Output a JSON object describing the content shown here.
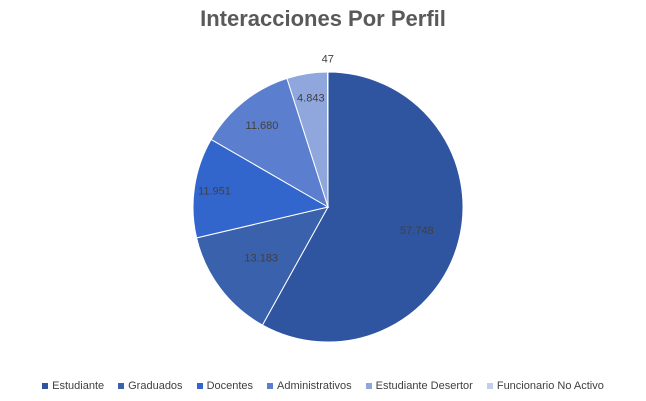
{
  "chart_data": {
    "type": "pie",
    "title": "Interacciones Por Perfil",
    "categories": [
      "Estudiante",
      "Graduados",
      "Docentes",
      "Administrativos",
      "Estudiante Desertor",
      "Funcionario No Activo"
    ],
    "values": [
      57748,
      13183,
      11951,
      11680,
      4843,
      47
    ],
    "value_labels": [
      "57.748",
      "13.183",
      "11.951",
      "11.680",
      "4.843",
      "47"
    ],
    "colors": [
      "#2f54a0",
      "#3a61ab",
      "#3366cc",
      "#5b7fce",
      "#8fa7dd",
      "#c2cfec"
    ],
    "legend_position": "bottom"
  }
}
